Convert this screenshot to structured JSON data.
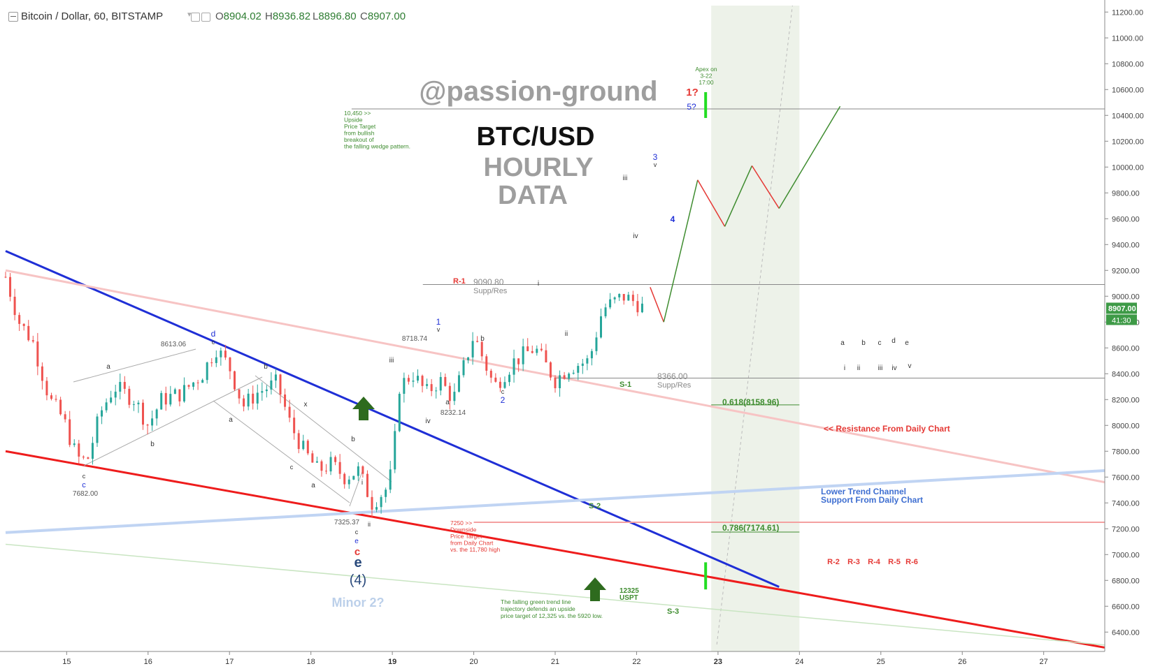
{
  "header": {
    "symbol": "Bitcoin / Dollar, 60, BITSTAMP",
    "caret": "▾",
    "open_label": "O",
    "open": "8904.02",
    "high_label": "H",
    "high": "8936.82",
    "low_label": "L",
    "low": "8896.80",
    "close_label": "C",
    "close": "8907.00"
  },
  "colors": {
    "up": "#26a69a",
    "down": "#ef5350",
    "blue_line": "#1f2fd6",
    "red_line": "#ee1c1c",
    "pink_line": "#f7c4c4",
    "lightblue_line": "#c0d4f3",
    "green_line": "#c9e5c2",
    "wave_green": "#3e8c2f",
    "wave_red": "#e53935",
    "zone": "#e8efe3",
    "price_tag": "#3e9a47"
  },
  "chart_data": {
    "type": "candlestick",
    "title": "BTC/USD HOURLY DATA",
    "watermark": "@passion-ground",
    "x_axis": {
      "type": "date",
      "tick_labels": [
        "15",
        "16",
        "17",
        "18",
        "19",
        "20",
        "21",
        "22",
        "23",
        "24",
        "25",
        "26",
        "27"
      ],
      "bold_ticks": [
        "19",
        "23"
      ],
      "range": [
        "2018-03-14T06:00",
        "2018-03-27T18:00"
      ]
    },
    "y_axis": {
      "side": "right",
      "range": [
        6250,
        11250
      ],
      "tick_labels": [
        "11200.00",
        "11000.00",
        "10800.00",
        "10600.00",
        "10400.00",
        "10200.00",
        "10000.00",
        "9800.00",
        "9600.00",
        "9400.00",
        "9200.00",
        "9000.00",
        "8800.00",
        "8600.00",
        "8400.00",
        "8200.00",
        "8000.00",
        "7800.00",
        "7600.00",
        "7400.00",
        "7200.00",
        "7000.00",
        "6800.00",
        "6600.00",
        "6400.00"
      ],
      "ticks": [
        11200,
        11000,
        10800,
        10600,
        10400,
        10200,
        10000,
        9800,
        9600,
        9400,
        9200,
        9000,
        8800,
        8600,
        8400,
        8200,
        8000,
        7800,
        7600,
        7400,
        7200,
        7000,
        6800,
        6600,
        6400
      ]
    },
    "last_price": {
      "value": 8907.0,
      "label": "8907.00",
      "countdown": "41:30"
    },
    "price_path": [
      [
        "2018-03-14T06:00",
        9150
      ],
      [
        "2018-03-14T10:00",
        8800
      ],
      [
        "2018-03-14T14:00",
        8650
      ],
      [
        "2018-03-14T19:00",
        8200
      ],
      [
        "2018-03-14T23:00",
        8050
      ],
      [
        "2018-03-15T03:00",
        7750
      ],
      [
        "2018-03-15T06:00",
        7720
      ],
      [
        "2018-03-15T10:00",
        8100
      ],
      [
        "2018-03-15T14:00",
        8300
      ],
      [
        "2018-03-15T20:00",
        8200
      ],
      [
        "2018-03-16T00:00",
        8000
      ],
      [
        "2018-03-16T04:00",
        8200
      ],
      [
        "2018-03-16T10:00",
        8250
      ],
      [
        "2018-03-16T16:00",
        8400
      ],
      [
        "2018-03-16T20:00",
        8600
      ],
      [
        "2018-03-17T00:00",
        8450
      ],
      [
        "2018-03-17T04:00",
        8150
      ],
      [
        "2018-03-17T08:00",
        8250
      ],
      [
        "2018-03-17T14:00",
        8330
      ],
      [
        "2018-03-17T18:00",
        8000
      ],
      [
        "2018-03-17T22:00",
        7800
      ],
      [
        "2018-03-18T02:00",
        7650
      ],
      [
        "2018-03-18T06:00",
        7700
      ],
      [
        "2018-03-18T10:00",
        7600
      ],
      [
        "2018-03-18T14:00",
        7650
      ],
      [
        "2018-03-18T18:00",
        7400
      ],
      [
        "2018-03-18T22:00",
        7500
      ],
      [
        "2018-03-19T00:00",
        7650
      ],
      [
        "2018-03-19T02:00",
        8300
      ],
      [
        "2018-03-19T06:00",
        8400
      ],
      [
        "2018-03-19T10:00",
        8250
      ],
      [
        "2018-03-19T14:00",
        8350
      ],
      [
        "2018-03-19T18:00",
        8200
      ],
      [
        "2018-03-20T00:00",
        8700
      ],
      [
        "2018-03-20T06:00",
        8300
      ],
      [
        "2018-03-20T12:00",
        8500
      ],
      [
        "2018-03-20T18:00",
        8600
      ],
      [
        "2018-03-21T00:00",
        8350
      ],
      [
        "2018-03-21T04:00",
        8450
      ],
      [
        "2018-03-21T10:00",
        8500
      ],
      [
        "2018-03-21T14:00",
        8900
      ],
      [
        "2018-03-21T20:00",
        9000
      ],
      [
        "2018-03-22T00:00",
        8950
      ],
      [
        "2018-03-22T02:00",
        8907
      ]
    ],
    "trend_lines": [
      {
        "name": "falling-wedge-upper",
        "color": "blue",
        "from": [
          "2018-03-14T06:00",
          9350
        ],
        "to": [
          "2018-03-23T18:00",
          6750
        ]
      },
      {
        "name": "falling-wedge-lower",
        "color": "red",
        "from": [
          "2018-03-14T06:00",
          7800
        ],
        "to": [
          "2018-03-27T18:00",
          6280
        ]
      },
      {
        "name": "resistance-daily",
        "color": "pink",
        "from": [
          "2018-03-14T06:00",
          9200
        ],
        "to": [
          "2018-03-27T18:00",
          7560
        ]
      },
      {
        "name": "lower-trend-channel",
        "color": "lightblue",
        "from": [
          "2018-03-14T06:00",
          7170
        ],
        "to": [
          "2018-03-27T18:00",
          7650
        ]
      },
      {
        "name": "falling-green",
        "color": "lightgreen",
        "from": [
          "2018-03-14T06:00",
          7080
        ],
        "to": [
          "2018-03-27T18:00",
          6300
        ]
      }
    ],
    "levels": [
      {
        "name": "R-1",
        "value": 9090.8
      },
      {
        "name": "S-1",
        "value": 8366.0
      },
      {
        "name": "0.618",
        "value": 8158.96
      },
      {
        "name": "0.786",
        "value": 7174.61
      },
      {
        "name": "target",
        "value": 10450
      },
      {
        "name": "downside",
        "value": 7250
      }
    ],
    "projected_path": [
      [
        "2018-03-22T04:00",
        9070
      ],
      [
        "2018-03-22T08:00",
        8800
      ],
      [
        "2018-03-22T18:00",
        9900
      ],
      [
        "2018-03-23T02:00",
        9540
      ],
      [
        "2018-03-23T10:00",
        10010
      ],
      [
        "2018-03-23T18:00",
        9680
      ],
      [
        "2018-03-24T12:00",
        10470
      ]
    ],
    "apex_zone": [
      "2018-03-22T22:00",
      "2018-03-24T00:00"
    ]
  },
  "texts": {
    "watermark": "@passion-ground",
    "title1": "BTC/USD",
    "title2": "HOURLY",
    "title3": "DATA",
    "upside_note": [
      "10,450 >>",
      "Upside",
      "Price Target",
      "from bullish",
      "breakout of",
      "the falling wedge pattern."
    ],
    "apex": [
      "Apex on",
      "3-22",
      "17:00"
    ],
    "r1": "R-1",
    "r1_value": "9090.80",
    "r1_desc": "Supp/Res",
    "s1": "S-1",
    "s1_value": "8366.00",
    "s1_desc": "Supp/Res",
    "fib618": "0.618(8158.96)",
    "fib786": "0.786(7174.61)",
    "resistance": "<<   Resistance From Daily Chart",
    "lower_channel1": "Lower Trend Channel",
    "lower_channel2": "Support From Daily Chart",
    "s2": "S-2",
    "s3": "S-3",
    "downside_note": [
      "7250 >>",
      "Downside",
      "Price Target",
      "from Daily Chart",
      "vs. the 11,780 high"
    ],
    "uspt1": "12325",
    "uspt2": "USPT",
    "green_note": [
      "The falling green trend line",
      "trajectory defends an upside",
      "price target of 12,325 vs. the 5920 low."
    ],
    "r_levels": [
      "R-2",
      "R-3",
      "R-4",
      "R-5",
      "R-6"
    ],
    "abcde": [
      "a",
      "b",
      "c",
      "d",
      "e"
    ],
    "roman": [
      "i",
      "ii",
      "iii",
      "iv",
      "v"
    ],
    "minor": "Minor 2?",
    "four": "(4)",
    "one_q": "1?",
    "five_q": "5?",
    "w3": "3",
    "w4": "4",
    "w1": "1",
    "w2": "2",
    "price_8613": "8613.06",
    "price_7682": "7682.00",
    "price_7325": "7325.37",
    "price_8718": "8718.74",
    "price_8232": "8232.14",
    "small_labels": {
      "a": "a",
      "b": "b",
      "c": "c",
      "d": "d",
      "e": "e",
      "x": "x",
      "i": "i",
      "ii": "ii",
      "iii": "iii",
      "iv": "iv",
      "v": "v"
    }
  }
}
